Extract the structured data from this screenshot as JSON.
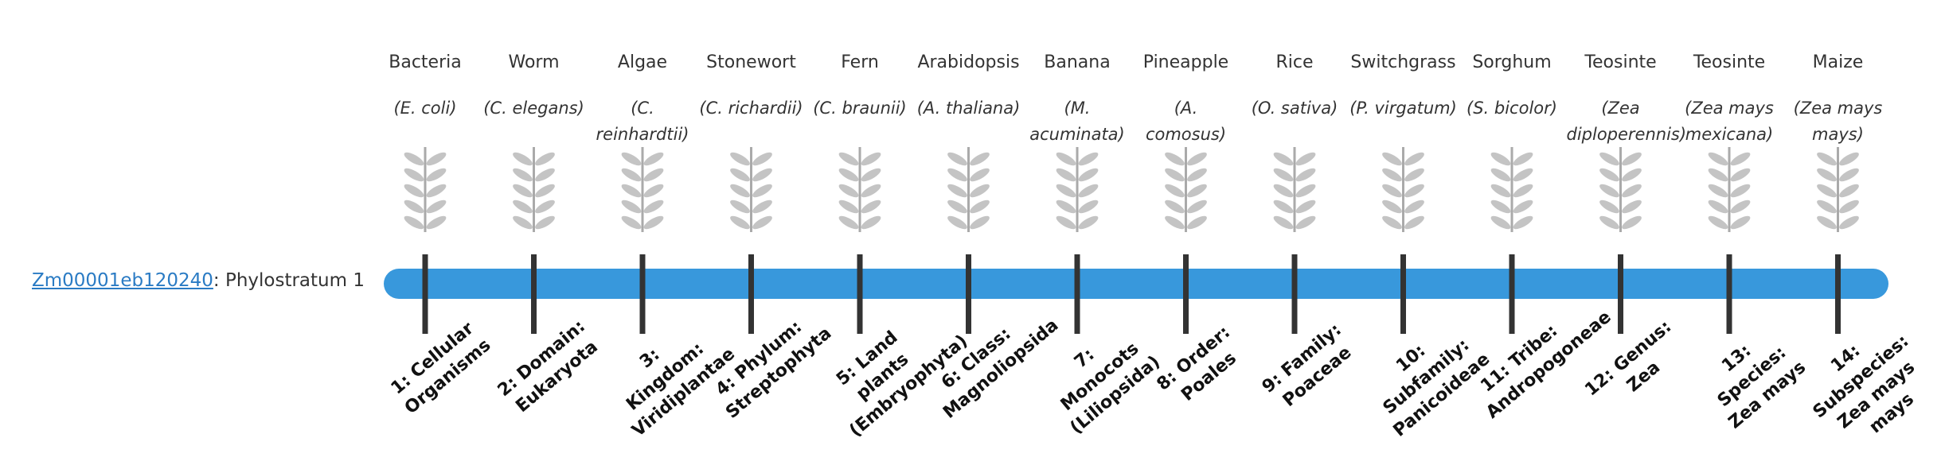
{
  "gene": {
    "id": "Zm00001eb120240",
    "suffix": ": Phylostratum 1"
  },
  "organisms": [
    {
      "name": "Bacteria",
      "scientific": "(E. coli)",
      "stratum": "1: Cellular Organisms"
    },
    {
      "name": "Worm",
      "scientific": "(C. elegans)",
      "stratum": "2: Domain: Eukaryota"
    },
    {
      "name": "Algae",
      "scientific": "(C. reinhardtii)",
      "stratum": "3: Kingdom: Viridiplantae"
    },
    {
      "name": "Stonewort",
      "scientific": "(C. richardii)",
      "stratum": "4: Phylum: Streptophyta"
    },
    {
      "name": "Fern",
      "scientific": "(C. braunii)",
      "stratum": "5: Land plants (Embryophyta)"
    },
    {
      "name": "Arabidopsis",
      "scientific": "(A. thaliana)",
      "stratum": "6: Class: Magnoliopsida"
    },
    {
      "name": "Banana",
      "scientific": "(M. acuminata)",
      "stratum": "7: Monocots (Liliopsida)"
    },
    {
      "name": "Pineapple",
      "scientific": "(A. comosus)",
      "stratum": "8: Order: Poales"
    },
    {
      "name": "Rice",
      "scientific": "(O. sativa)",
      "stratum": "9: Family: Poaceae"
    },
    {
      "name": "Switchgrass",
      "scientific": "(P. virgatum)",
      "stratum": "10: Subfamily: Panicoideae"
    },
    {
      "name": "Sorghum",
      "scientific": "(S. bicolor)",
      "stratum": "11: Tribe: Andropogoneae"
    },
    {
      "name": "Teosinte",
      "scientific": "(Zea diploperennis)",
      "stratum": "12: Genus: Zea"
    },
    {
      "name": "Teosinte",
      "scientific": "(Zea mays mexicana)",
      "stratum": "13: Species: Zea mays"
    },
    {
      "name": "Maize",
      "scientific": "(Zea mays mays)",
      "stratum": "14: Subspecies: Zea mays mays"
    }
  ]
}
